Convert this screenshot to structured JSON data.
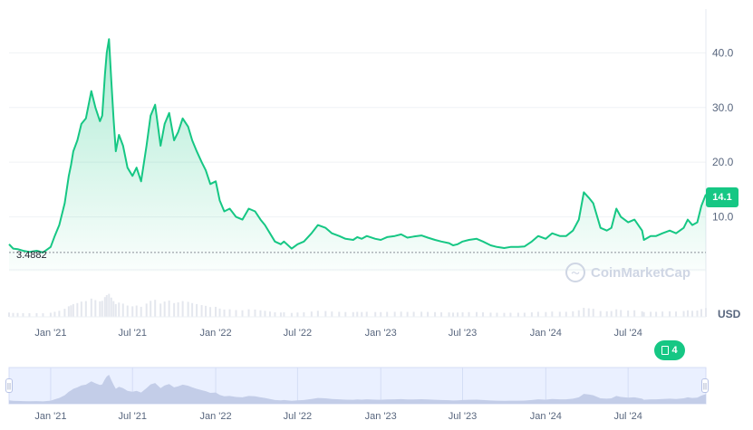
{
  "chart_data": {
    "type": "area",
    "currency_label": "USD",
    "current_price_label": "14.1",
    "min_price_label": "3.4882",
    "y_ticks": [
      "10.0",
      "20.0",
      "30.0",
      "40.0"
    ],
    "x_ticks": [
      "Jan '21",
      "Jul '21",
      "Jan '22",
      "Jul '22",
      "Jan '23",
      "Jul '23",
      "Jan '24",
      "Jul '24"
    ],
    "ylim": [
      0,
      48
    ],
    "x_range": [
      "2020-10-01",
      "2024-12-20"
    ],
    "grid": true,
    "line_color": "#16c784",
    "series": [
      {
        "x": [
          "2020-10-01",
          "2020-10-10",
          "2020-10-20",
          "2020-11-01",
          "2020-11-15",
          "2020-12-01",
          "2020-12-15",
          "2021-01-01",
          "2021-01-10",
          "2021-01-20",
          "2021-02-01",
          "2021-02-10",
          "2021-02-15",
          "2021-02-20",
          "2021-03-01",
          "2021-03-10",
          "2021-03-20",
          "2021-04-01",
          "2021-04-10",
          "2021-04-20",
          "2021-04-25",
          "2021-05-01",
          "2021-05-05",
          "2021-05-10",
          "2021-05-15",
          "2021-05-20",
          "2021-05-25",
          "2021-06-01",
          "2021-06-10",
          "2021-06-20",
          "2021-07-01",
          "2021-07-10",
          "2021-07-20",
          "2021-08-01",
          "2021-08-10",
          "2021-08-20",
          "2021-09-01",
          "2021-09-10",
          "2021-09-20",
          "2021-10-01",
          "2021-10-10",
          "2021-10-20",
          "2021-11-01",
          "2021-11-10",
          "2021-11-20",
          "2021-12-01",
          "2021-12-10",
          "2021-12-20",
          "2022-01-01",
          "2022-01-10",
          "2022-01-20",
          "2022-02-01",
          "2022-02-15",
          "2022-03-01",
          "2022-03-15",
          "2022-03-29",
          "2022-04-10",
          "2022-04-20",
          "2022-05-01",
          "2022-05-12",
          "2022-05-25",
          "2022-06-01",
          "2022-06-18",
          "2022-07-01",
          "2022-07-15",
          "2022-08-01",
          "2022-08-15",
          "2022-09-01",
          "2022-09-15",
          "2022-10-01",
          "2022-10-15",
          "2022-11-01",
          "2022-11-10",
          "2022-11-20",
          "2022-12-01",
          "2022-12-20",
          "2023-01-01",
          "2023-01-15",
          "2023-02-01",
          "2023-02-15",
          "2023-03-01",
          "2023-03-15",
          "2023-04-01",
          "2023-04-15",
          "2023-05-01",
          "2023-05-15",
          "2023-06-01",
          "2023-06-10",
          "2023-06-20",
          "2023-07-01",
          "2023-07-15",
          "2023-08-01",
          "2023-08-15",
          "2023-09-01",
          "2023-09-15",
          "2023-10-01",
          "2023-10-15",
          "2023-11-01",
          "2023-11-15",
          "2023-12-01",
          "2023-12-15",
          "2024-01-01",
          "2024-01-15",
          "2024-02-01",
          "2024-02-15",
          "2024-03-01",
          "2024-03-14",
          "2024-03-25",
          "2024-04-05",
          "2024-04-15",
          "2024-05-01",
          "2024-05-15",
          "2024-05-25",
          "2024-06-05",
          "2024-06-15",
          "2024-07-01",
          "2024-07-15",
          "2024-08-01",
          "2024-08-05",
          "2024-08-20",
          "2024-09-01",
          "2024-09-15",
          "2024-10-01",
          "2024-10-15",
          "2024-11-01",
          "2024-11-10",
          "2024-11-20",
          "2024-12-01",
          "2024-12-10",
          "2024-12-20"
        ],
        "y": [
          5.0,
          4.2,
          4.1,
          3.8,
          3.6,
          3.8,
          3.5,
          4.5,
          6.5,
          8.5,
          12.5,
          17.5,
          19.5,
          22.0,
          24.0,
          27.0,
          28.0,
          33.0,
          30.0,
          27.5,
          28.5,
          36.0,
          40.0,
          42.5,
          35.0,
          28.0,
          22.0,
          25.0,
          23.0,
          19.0,
          17.5,
          19.0,
          16.5,
          23.0,
          28.5,
          30.5,
          23.0,
          27.0,
          29.0,
          24.0,
          25.5,
          28.0,
          26.5,
          24.0,
          22.0,
          20.0,
          18.5,
          16.0,
          16.5,
          13.0,
          11.0,
          11.5,
          10.0,
          9.5,
          11.5,
          11.0,
          9.5,
          8.5,
          7.0,
          5.5,
          5.0,
          5.5,
          4.2,
          5.0,
          5.5,
          7.0,
          8.5,
          8.0,
          7.0,
          6.5,
          6.0,
          5.8,
          6.3,
          6.0,
          6.5,
          6.0,
          5.8,
          6.3,
          6.5,
          6.8,
          6.2,
          6.4,
          6.6,
          6.2,
          5.8,
          5.5,
          5.2,
          4.8,
          5.0,
          5.5,
          5.8,
          6.0,
          5.5,
          4.8,
          4.5,
          4.3,
          4.5,
          4.5,
          4.6,
          5.5,
          6.5,
          6.0,
          7.0,
          6.5,
          6.5,
          7.5,
          9.5,
          14.5,
          13.5,
          12.5,
          8.0,
          7.5,
          8.0,
          11.5,
          10.0,
          9.0,
          9.5,
          7.5,
          5.8,
          6.5,
          6.5,
          7.0,
          7.5,
          7.0,
          8.0,
          9.5,
          8.5,
          9.0,
          12.0,
          14.1
        ]
      }
    ]
  }
}
